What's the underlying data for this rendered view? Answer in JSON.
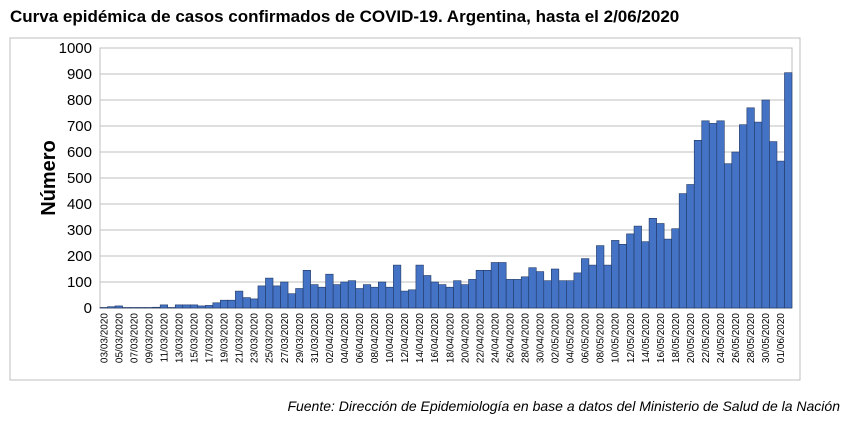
{
  "chart_data": {
    "type": "bar",
    "title": "Curva epidémica de casos confirmados de COVID-19.  Argentina, hasta el 2/06/2020",
    "y_label": "Número",
    "source": "Fuente: Dirección de Epidemiología en base a datos del Ministerio de Salud de la Nación",
    "categories": [
      "03/03/2020",
      null,
      "05/03/2020",
      null,
      "07/03/2020",
      null,
      "09/03/2020",
      null,
      "11/03/2020",
      null,
      "13/03/2020",
      null,
      "15/03/2020",
      null,
      "17/03/2020",
      null,
      "19/03/2020",
      null,
      "21/03/2020",
      null,
      "23/03/2020",
      null,
      "25/03/2020",
      null,
      "27/03/2020",
      null,
      "29/03/2020",
      null,
      "31/03/2020",
      null,
      "02/04/2020",
      null,
      "04/04/2020",
      null,
      "06/04/2020",
      null,
      "08/04/2020",
      null,
      "10/04/2020",
      null,
      "12/04/2020",
      null,
      "14/04/2020",
      null,
      "16/04/2020",
      null,
      "18/04/2020",
      null,
      "20/04/2020",
      null,
      "22/04/2020",
      null,
      "24/04/2020",
      null,
      "26/04/2020",
      null,
      "28/04/2020",
      null,
      "30/04/2020",
      null,
      "02/05/2020",
      null,
      "04/05/2020",
      null,
      "06/05/2020",
      null,
      "08/05/2020",
      null,
      "10/05/2020",
      null,
      "12/05/2020",
      null,
      "14/05/2020",
      null,
      "16/05/2020",
      null,
      "18/05/2020",
      null,
      "20/05/2020",
      null,
      "22/05/2020",
      null,
      "24/05/2020",
      null,
      "26/05/2020",
      null,
      "28/05/2020",
      null,
      "30/05/2020",
      null,
      "01/06/2020",
      null
    ],
    "values": [
      2,
      5,
      8,
      2,
      2,
      2,
      2,
      3,
      12,
      2,
      12,
      12,
      12,
      8,
      10,
      20,
      30,
      30,
      65,
      40,
      35,
      85,
      115,
      85,
      100,
      55,
      75,
      145,
      90,
      80,
      130,
      90,
      100,
      105,
      75,
      90,
      80,
      100,
      80,
      165,
      65,
      70,
      165,
      125,
      100,
      90,
      80,
      105,
      90,
      110,
      145,
      145,
      175,
      175,
      110,
      110,
      120,
      155,
      140,
      105,
      150,
      105,
      105,
      135,
      190,
      165,
      240,
      165,
      260,
      245,
      285,
      315,
      255,
      345,
      325,
      265,
      305,
      440,
      475,
      645,
      720,
      710,
      720,
      555,
      600,
      705,
      770,
      715,
      800,
      640,
      565,
      905
    ],
    "color": "#4472c4",
    "ylim": [
      0,
      1000
    ],
    "yticks": [
      0,
      100,
      200,
      300,
      400,
      500,
      600,
      700,
      800,
      900,
      1000
    ],
    "grid": true
  }
}
